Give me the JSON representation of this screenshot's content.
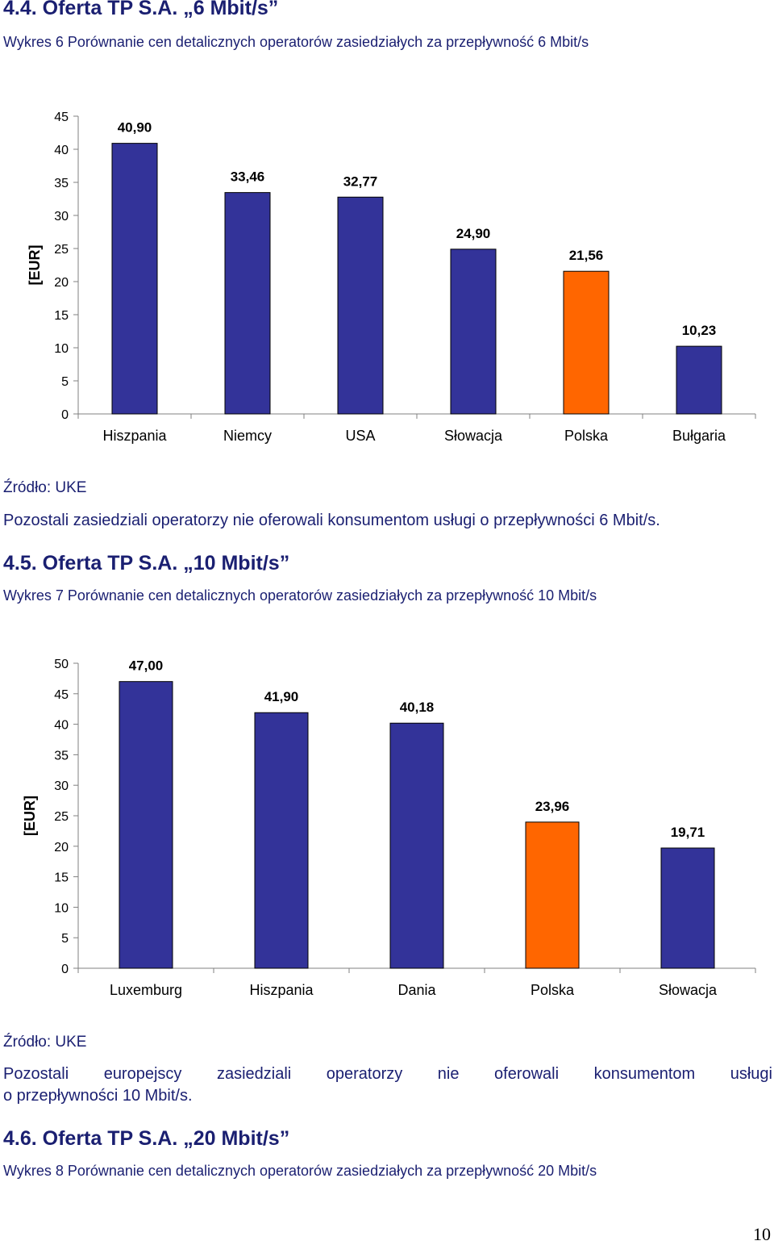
{
  "sections": [
    {
      "heading": "4.4.   Oferta TP S.A. „6 Mbit/s”",
      "caption": "Wykres 6 Porównanie cen detalicznych operatorów zasiedziałych za przepływność 6 Mbit/s",
      "source": "Źródło: UKE",
      "note": "Pozostali zasiedziali operatorzy nie oferowali konsumentom usługi o przepływności 6 Mbit/s."
    },
    {
      "heading": "4.5.   Oferta TP S.A. „10 Mbit/s”",
      "caption": "Wykres 7 Porównanie cen detalicznych operatorów zasiedziałych za przepływność 10 Mbit/s",
      "source": "Źródło: UKE",
      "note_line1": "Pozostali europejscy zasiedziali operatorzy nie oferowali konsumentom usługi",
      "note_line2": "o przepływności 10 Mbit/s."
    },
    {
      "heading": "4.6.   Oferta TP S.A. „20 Mbit/s”",
      "caption": "Wykres 8 Porównanie cen detalicznych operatorów zasiedziałych za przepływność 20 Mbit/s"
    }
  ],
  "page_number": "10",
  "chart_data": [
    {
      "type": "bar",
      "title": "",
      "xlabel": "",
      "ylabel": "[EUR]",
      "categories": [
        "Hiszpania",
        "Niemcy",
        "USA",
        "Słowacja",
        "Polska",
        "Bułgaria"
      ],
      "values": [
        40.9,
        33.46,
        32.77,
        24.9,
        21.56,
        10.23
      ],
      "labels": [
        "40,90",
        "33,46",
        "32,77",
        "24,90",
        "21,56",
        "10,23"
      ],
      "highlight": [
        false,
        false,
        false,
        false,
        true,
        false
      ],
      "yticks": [
        "0",
        "5",
        "10",
        "15",
        "20",
        "25",
        "30",
        "35",
        "40",
        "45"
      ],
      "ylim": [
        0,
        45
      ],
      "grid": false,
      "legend": "none",
      "colors": {
        "bar": "#333399",
        "highlight": "#ff6600",
        "outline": "#000000"
      }
    },
    {
      "type": "bar",
      "title": "",
      "xlabel": "",
      "ylabel": "[EUR]",
      "categories": [
        "Luxemburg",
        "Hiszpania",
        "Dania",
        "Polska",
        "Słowacja"
      ],
      "values": [
        47.0,
        41.9,
        40.18,
        23.96,
        19.71
      ],
      "labels": [
        "47,00",
        "41,90",
        "40,18",
        "23,96",
        "19,71"
      ],
      "highlight": [
        false,
        false,
        false,
        true,
        false
      ],
      "yticks": [
        "0",
        "5",
        "10",
        "15",
        "20",
        "25",
        "30",
        "35",
        "40",
        "45",
        "50"
      ],
      "ylim": [
        0,
        50
      ],
      "grid": false,
      "legend": "none",
      "colors": {
        "bar": "#333399",
        "highlight": "#ff6600",
        "outline": "#000000"
      }
    }
  ]
}
